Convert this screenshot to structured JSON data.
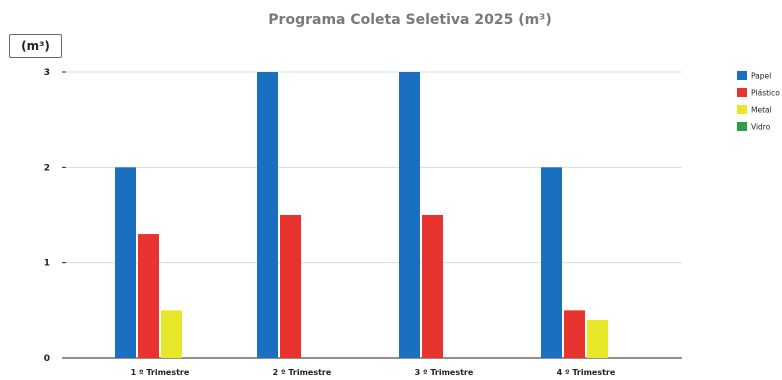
{
  "chart_data": {
    "type": "bar",
    "title": "Programa Coleta Seletiva 2025  (m³)",
    "unit_label": "(m³)",
    "categories": [
      "1 º Trimestre",
      "2 º Trimestre",
      "3 º Trimestre",
      "4 º Trimestre"
    ],
    "series": [
      {
        "name": "Papel",
        "color": "#1a6fc1",
        "values": [
          2,
          3,
          3,
          2
        ]
      },
      {
        "name": "Plástico",
        "color": "#e8332f",
        "values": [
          1.3,
          1.5,
          1.5,
          0.5
        ]
      },
      {
        "name": "Metal",
        "color": "#e8e82a",
        "values": [
          0.5,
          0,
          0,
          0.4
        ]
      },
      {
        "name": "Vidro",
        "color": "#2e9f48",
        "values": [
          0,
          0,
          0,
          0
        ]
      }
    ],
    "yticks": [
      "0",
      "1",
      "2",
      "3"
    ],
    "ylim": [
      0,
      3
    ],
    "grid": true,
    "legend_position": "right"
  }
}
